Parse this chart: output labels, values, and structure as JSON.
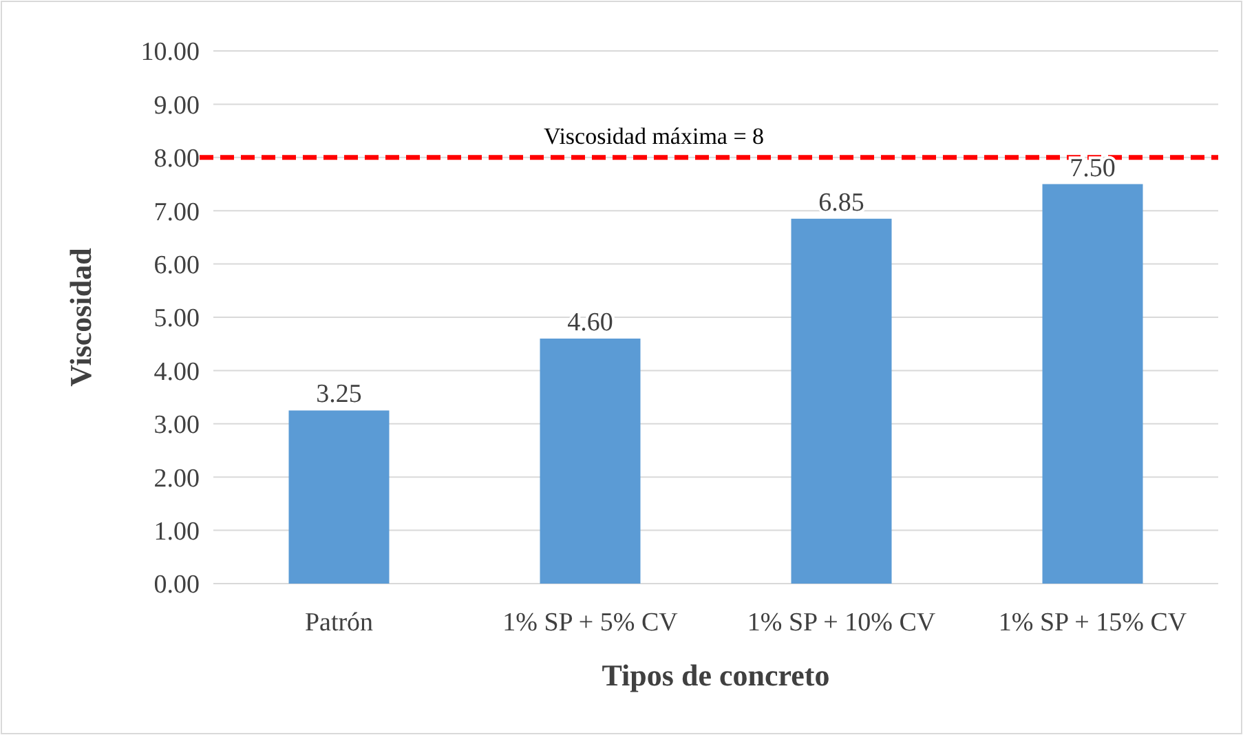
{
  "chart_data": {
    "type": "bar",
    "xlabel": "Tipos de concreto",
    "ylabel": "Viscosidad",
    "categories": [
      "Patrón",
      "1% SP + 5% CV",
      "1% SP + 10% CV",
      "1% SP + 15% CV"
    ],
    "values": [
      3.25,
      4.6,
      6.85,
      7.5
    ],
    "value_labels": [
      "3.25",
      "4.60",
      "6.85",
      "7.50"
    ],
    "color": "#5b9bd5",
    "ylim": [
      0,
      10
    ],
    "yticks": [
      {
        "value": 0,
        "label": "0.00"
      },
      {
        "value": 1,
        "label": "1.00"
      },
      {
        "value": 2,
        "label": "2.00"
      },
      {
        "value": 3,
        "label": "3.00"
      },
      {
        "value": 4,
        "label": "4.00"
      },
      {
        "value": 5,
        "label": "5.00"
      },
      {
        "value": 6,
        "label": "6.00"
      },
      {
        "value": 7,
        "label": "7.00"
      },
      {
        "value": 8,
        "label": "8.00"
      },
      {
        "value": 9,
        "label": "9.00"
      },
      {
        "value": 10,
        "label": "10.00"
      }
    ],
    "grid": "y",
    "ref_lines": [
      {
        "axis": "y",
        "value": 8,
        "label": "Viscosidad máxima = 8",
        "color": "#ff0000",
        "line_style": "dashed"
      }
    ]
  }
}
